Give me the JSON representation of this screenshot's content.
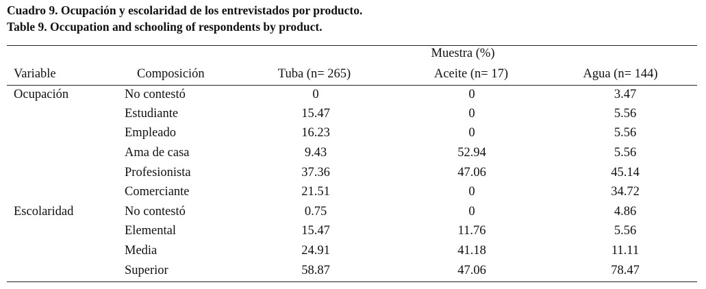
{
  "caption": {
    "es": "Cuadro 9. Ocupación y escolaridad de los entrevistados por producto.",
    "en": "Table 9. Occupation and schooling of respondents by product."
  },
  "table": {
    "group_header": "Muestra (%)",
    "headers": {
      "variable": "Variable",
      "composicion": "Composición",
      "tuba": "Tuba (n= 265)",
      "aceite": "Aceite (n= 17)",
      "agua": "Agua (n= 144)"
    },
    "rows": [
      {
        "variable": "Ocupación",
        "composicion": "No contestó",
        "tuba": "0",
        "aceite": "0",
        "agua": "3.47"
      },
      {
        "variable": "",
        "composicion": "Estudiante",
        "tuba": "15.47",
        "aceite": "0",
        "agua": "5.56"
      },
      {
        "variable": "",
        "composicion": "Empleado",
        "tuba": "16.23",
        "aceite": "0",
        "agua": "5.56"
      },
      {
        "variable": "",
        "composicion": "Ama de casa",
        "tuba": "9.43",
        "aceite": "52.94",
        "agua": "5.56"
      },
      {
        "variable": "",
        "composicion": "Profesionista",
        "tuba": "37.36",
        "aceite": "47.06",
        "agua": "45.14"
      },
      {
        "variable": "",
        "composicion": "Comerciante",
        "tuba": "21.51",
        "aceite": "0",
        "agua": "34.72"
      },
      {
        "variable": "Escolaridad",
        "composicion": "No contestó",
        "tuba": "0.75",
        "aceite": "0",
        "agua": "4.86"
      },
      {
        "variable": "",
        "composicion": "Elemental",
        "tuba": "15.47",
        "aceite": "11.76",
        "agua": "5.56"
      },
      {
        "variable": "",
        "composicion": "Media",
        "tuba": "24.91",
        "aceite": "41.18",
        "agua": "11.11"
      },
      {
        "variable": "",
        "composicion": "Superior",
        "tuba": "58.87",
        "aceite": "47.06",
        "agua": "78.47"
      }
    ]
  }
}
